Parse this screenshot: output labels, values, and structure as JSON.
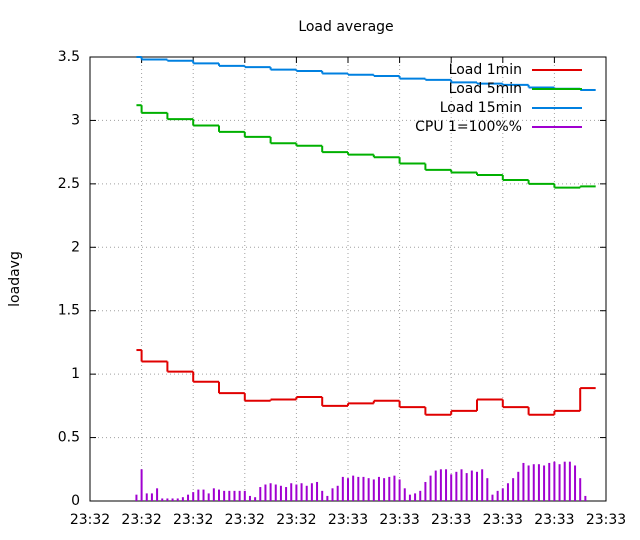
{
  "chart_data": {
    "type": "line",
    "title": "Load average",
    "y_label": "loadavg",
    "grid": true,
    "legend": "top-right",
    "xlim": [
      0,
      50
    ],
    "ylim": [
      0,
      3.5
    ],
    "yticks": [
      0,
      0.5,
      1,
      1.5,
      2,
      2.5,
      3,
      3.5
    ],
    "xticks": [
      {
        "value": 0,
        "label": "23:32"
      },
      {
        "value": 5,
        "label": "23:32"
      },
      {
        "value": 10,
        "label": "23:32"
      },
      {
        "value": 15,
        "label": "23:32"
      },
      {
        "value": 20,
        "label": "23:32"
      },
      {
        "value": 25,
        "label": "23:33"
      },
      {
        "value": 30,
        "label": "23:33"
      },
      {
        "value": 35,
        "label": "23:33"
      },
      {
        "value": 40,
        "label": "23:33"
      },
      {
        "value": 45,
        "label": "23:33"
      },
      {
        "value": 50,
        "label": "23:33"
      }
    ],
    "series": [
      {
        "name": "Load 1min",
        "color": "#e00000",
        "style": "steps",
        "x": [
          4.5,
          5,
          7.5,
          10,
          12.5,
          15,
          17.5,
          20,
          22.5,
          25,
          27.5,
          30,
          32.5,
          35,
          37.5,
          40,
          42.5,
          45,
          47.5,
          49
        ],
        "values": [
          1.19,
          1.1,
          1.02,
          0.94,
          0.85,
          0.79,
          0.8,
          0.82,
          0.75,
          0.77,
          0.79,
          0.74,
          0.68,
          0.71,
          0.8,
          0.74,
          0.68,
          0.71,
          0.89,
          0.89
        ]
      },
      {
        "name": "Load 5min",
        "color": "#00b000",
        "style": "steps",
        "x": [
          4.5,
          5,
          7.5,
          10,
          12.5,
          15,
          17.5,
          20,
          22.5,
          25,
          27.5,
          30,
          32.5,
          35,
          37.5,
          40,
          42.5,
          45,
          47.5,
          49
        ],
        "values": [
          3.12,
          3.06,
          3.01,
          2.96,
          2.91,
          2.87,
          2.82,
          2.8,
          2.75,
          2.73,
          2.71,
          2.66,
          2.61,
          2.59,
          2.57,
          2.53,
          2.5,
          2.47,
          2.48,
          2.48
        ]
      },
      {
        "name": "Load 15min",
        "color": "#0080e0",
        "style": "steps",
        "x": [
          4.5,
          5,
          7.5,
          10,
          12.5,
          15,
          17.5,
          20,
          22.5,
          25,
          27.5,
          30,
          32.5,
          35,
          37.5,
          40,
          42.5,
          45,
          47.5,
          49
        ],
        "values": [
          3.5,
          3.48,
          3.47,
          3.45,
          3.43,
          3.42,
          3.4,
          3.39,
          3.37,
          3.36,
          3.35,
          3.33,
          3.32,
          3.3,
          3.29,
          3.28,
          3.26,
          3.25,
          3.24,
          3.24
        ]
      },
      {
        "name": "CPU 1=100%%",
        "color": "#a000d0",
        "style": "impulses",
        "x": [
          4.5,
          5,
          5.5,
          6,
          6.5,
          7,
          7.5,
          8,
          8.5,
          9,
          9.5,
          10,
          10.5,
          11,
          11.5,
          12,
          12.5,
          13,
          13.5,
          14,
          14.5,
          15,
          15.5,
          16,
          16.5,
          17,
          17.5,
          18,
          18.5,
          19,
          19.5,
          20,
          20.5,
          21,
          21.5,
          22,
          22.5,
          23,
          23.5,
          24,
          24.5,
          25,
          25.5,
          26,
          26.5,
          27,
          27.5,
          28,
          28.5,
          29,
          29.5,
          30,
          30.5,
          31,
          31.5,
          32,
          32.5,
          33,
          33.5,
          34,
          34.5,
          35,
          35.5,
          36,
          36.5,
          37,
          37.5,
          38,
          38.5,
          39,
          39.5,
          40,
          40.5,
          41,
          41.5,
          42,
          42.5,
          43,
          43.5,
          44,
          44.5,
          45,
          45.5,
          46,
          46.5,
          47,
          47.5,
          48
        ],
        "values": [
          0.05,
          0.25,
          0.06,
          0.06,
          0.1,
          0.02,
          0.02,
          0.02,
          0.02,
          0.03,
          0.05,
          0.07,
          0.09,
          0.09,
          0.06,
          0.1,
          0.09,
          0.08,
          0.08,
          0.08,
          0.08,
          0.08,
          0.04,
          0.03,
          0.11,
          0.13,
          0.14,
          0.13,
          0.12,
          0.11,
          0.14,
          0.13,
          0.14,
          0.12,
          0.14,
          0.15,
          0.08,
          0.04,
          0.1,
          0.12,
          0.19,
          0.18,
          0.2,
          0.19,
          0.19,
          0.18,
          0.17,
          0.19,
          0.18,
          0.19,
          0.2,
          0.17,
          0.1,
          0.05,
          0.06,
          0.08,
          0.15,
          0.2,
          0.24,
          0.25,
          0.25,
          0.21,
          0.23,
          0.25,
          0.22,
          0.24,
          0.23,
          0.25,
          0.18,
          0.05,
          0.08,
          0.1,
          0.14,
          0.18,
          0.23,
          0.3,
          0.28,
          0.29,
          0.29,
          0.28,
          0.3,
          0.31,
          0.29,
          0.31,
          0.31,
          0.28,
          0.18,
          0.04
        ]
      }
    ]
  }
}
